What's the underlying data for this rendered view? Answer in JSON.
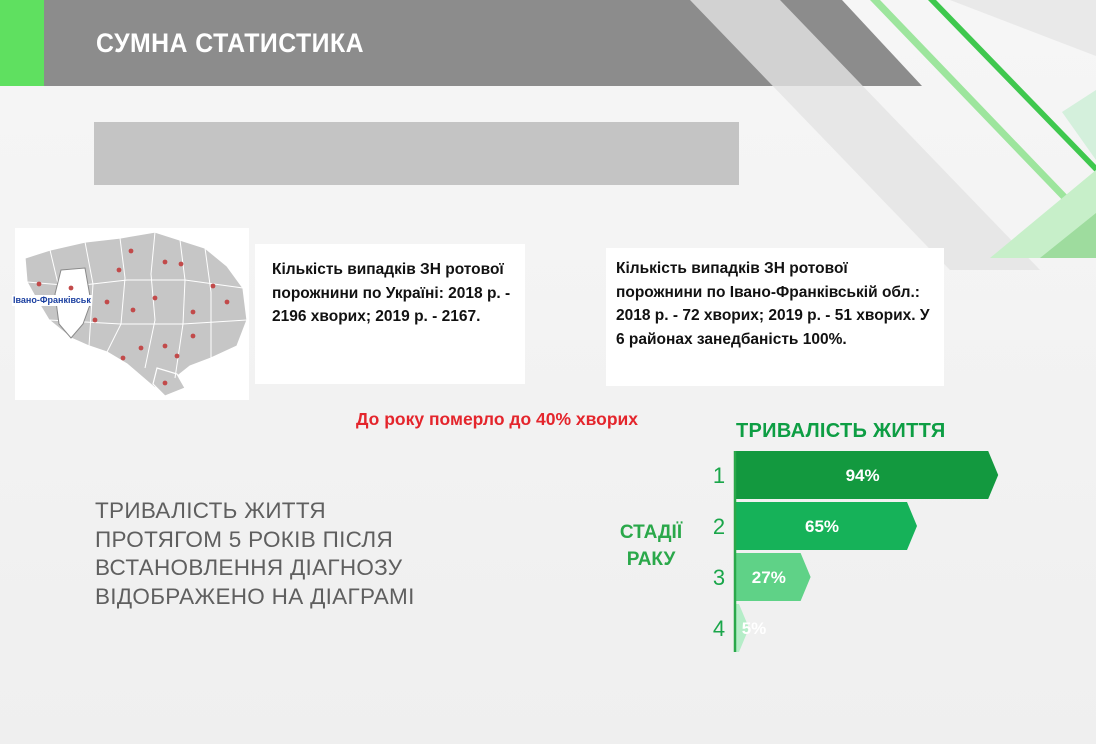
{
  "header": {
    "title": "СУМНА СТАТИСТИКА"
  },
  "map": {
    "region_label": "Івано-Франківськ"
  },
  "cards": {
    "ukraine": "Кількість випадків ЗН ротової порожнини по Україні: 2018 р. - 2196 хворих; 2019 р. - 2167.",
    "region": "Кількість випадків ЗН ротової порожнини по Івано-Франківській обл.: 2018 р. - 72 хворих; 2019 р. - 51 хворих. У 6 районах занедбаність 100%."
  },
  "note": "До року померло до 40% хворих",
  "description": [
    "ТРИВАЛІСТЬ ЖИТТЯ",
    "ПРОТЯГОМ 5 РОКІВ ПІСЛЯ",
    "ВСТАНОВЛЕННЯ ДІАГНОЗУ",
    "ВІДОБРАЖЕНО НА ДІАГРАМІ"
  ],
  "colors": {
    "accent_green": "#0e9e44",
    "header_gray": "#8b8b8b",
    "note_red": "#e4252c"
  },
  "chart_data": {
    "type": "bar",
    "orientation": "horizontal",
    "title": "ТРИВАЛІСТЬ ЖИТТЯ",
    "ylabel": "СТАДІЇ РАКУ",
    "categories": [
      "1",
      "2",
      "3",
      "4"
    ],
    "values": [
      94,
      65,
      27,
      5
    ],
    "value_labels": [
      "94%",
      "65%",
      "27%",
      "5%"
    ],
    "colors": [
      "#13993f",
      "#16b259",
      "#5fd287",
      "#b5edc8"
    ],
    "xlim": [
      0,
      100
    ]
  }
}
